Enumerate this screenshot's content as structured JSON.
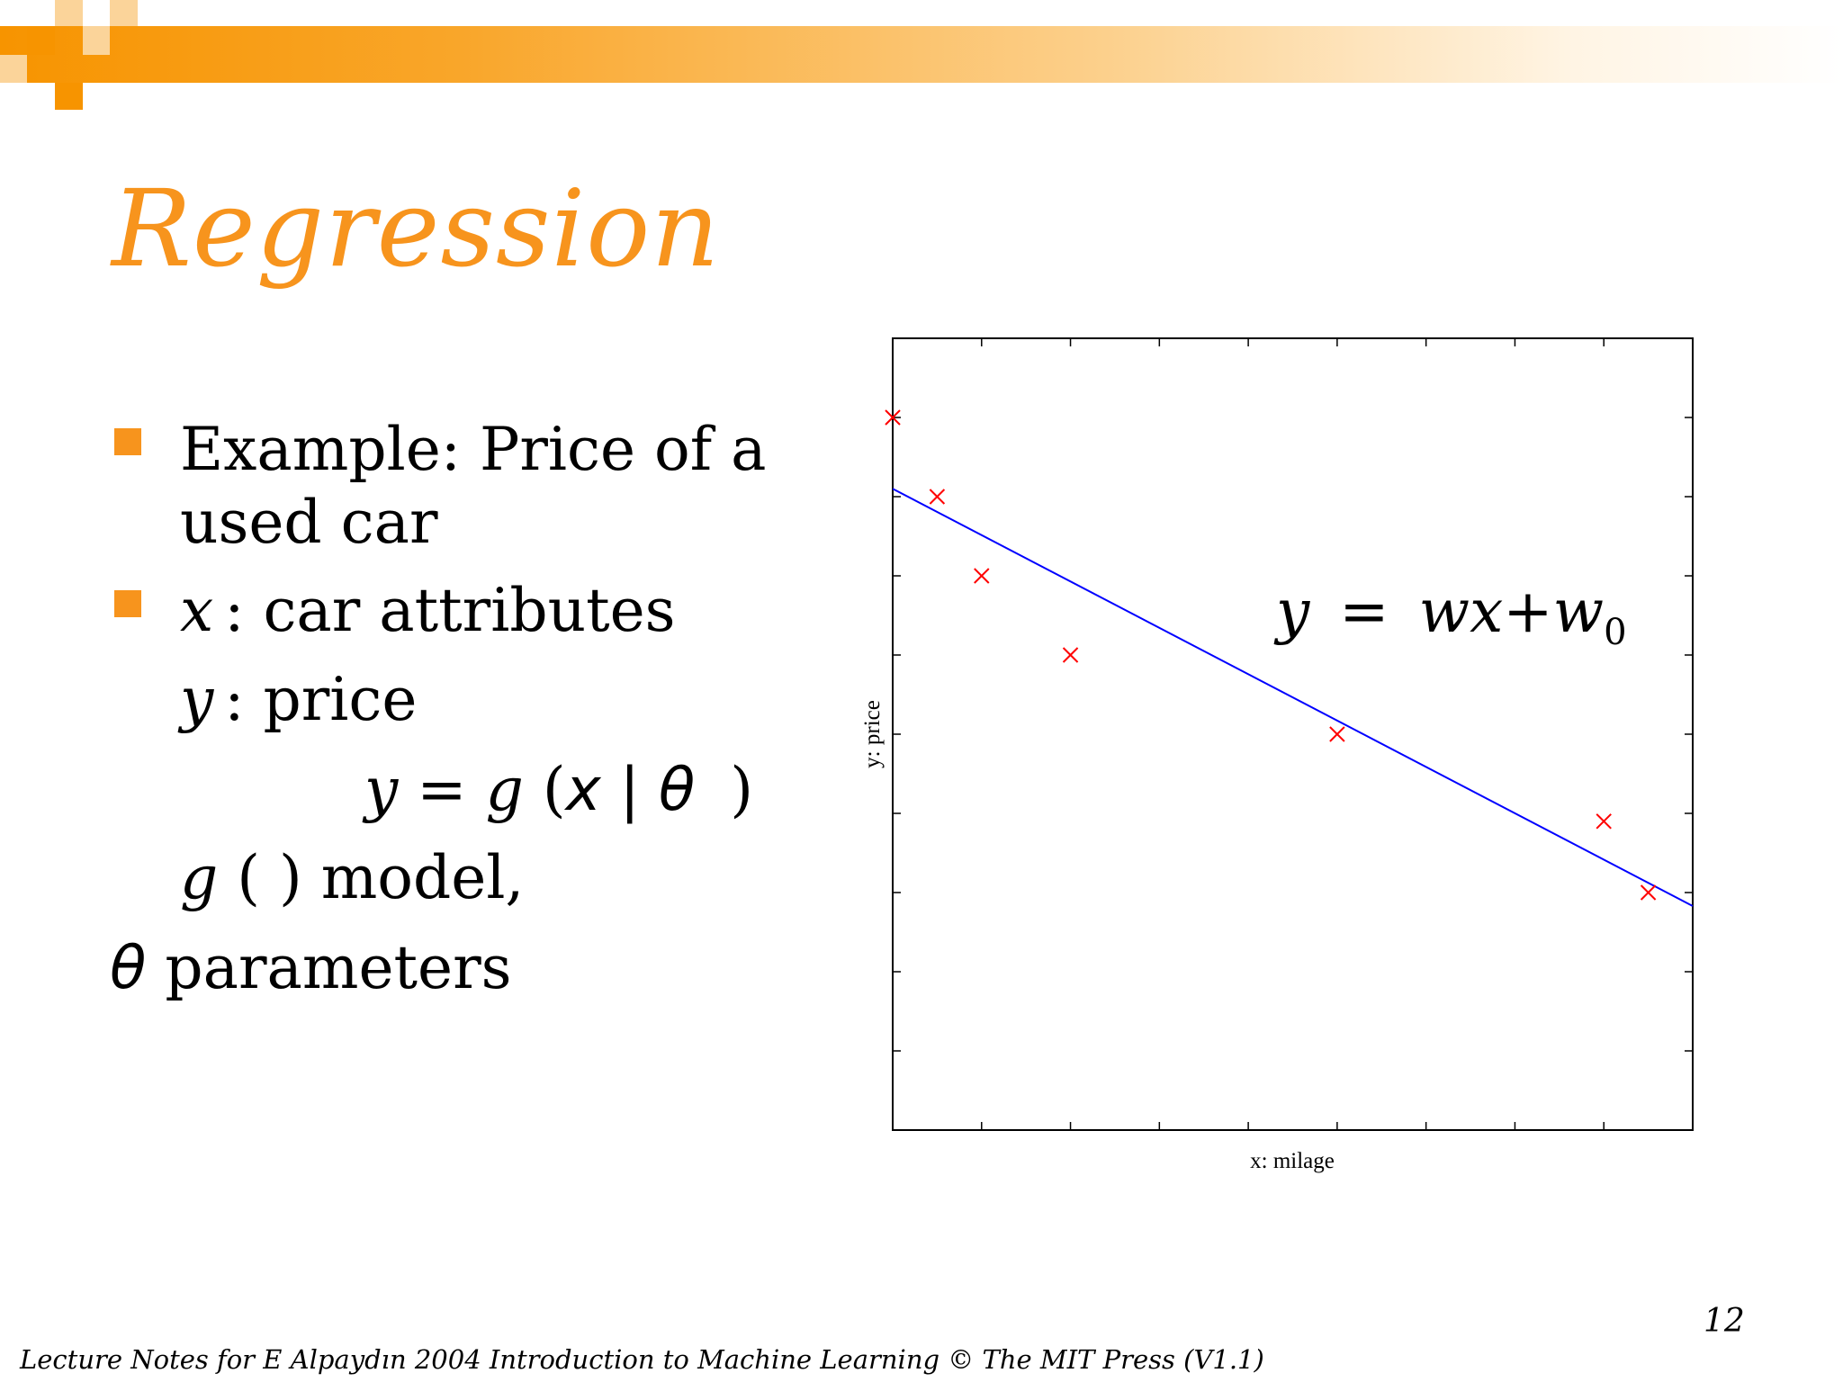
{
  "slide": {
    "title": "Regression",
    "page_number": "12",
    "footer": "Lecture Notes for E Alpaydın 2004 Introduction to Machine Learning © The MIT Press (V1.1)",
    "colors": {
      "accent": "#f7941d",
      "line": "#0000ff",
      "marker": "#ff0000"
    }
  },
  "bullets": {
    "b1_line1": "Example: Price of a",
    "b1_line2": "used car",
    "b2_var": "x",
    "b2_text": ": car attributes",
    "y_var": "y",
    "y_text": ": price",
    "eq_y": "y",
    "eq_eq": "=",
    "eq_g": "g",
    "eq_open": "(",
    "eq_x": "x",
    "eq_bar": "|",
    "eq_theta": "θ",
    "eq_close": ")",
    "model_g": "g",
    "model_text": "( ) model,",
    "param_glyph": "",
    "param_theta": "θ",
    "param_text": "parameters"
  },
  "equation": {
    "y": "y",
    "eq": "=",
    "wx": "wx",
    "plus": "+",
    "w": "w",
    "sub": "0"
  },
  "chart_data": {
    "type": "scatter",
    "xlabel": "x: milage",
    "ylabel": "y: price",
    "xlim": [
      0,
      9
    ],
    "ylim": [
      0,
      10
    ],
    "grid": false,
    "points": [
      {
        "x": 0.0,
        "y": 9.0
      },
      {
        "x": 0.5,
        "y": 8.0
      },
      {
        "x": 1.0,
        "y": 7.0
      },
      {
        "x": 2.0,
        "y": 6.0
      },
      {
        "x": 5.0,
        "y": 5.0
      },
      {
        "x": 8.0,
        "y": 3.9
      },
      {
        "x": 8.5,
        "y": 3.0
      }
    ],
    "fit_line": {
      "x": [
        0,
        9
      ],
      "y": [
        8.1,
        2.83
      ]
    }
  }
}
